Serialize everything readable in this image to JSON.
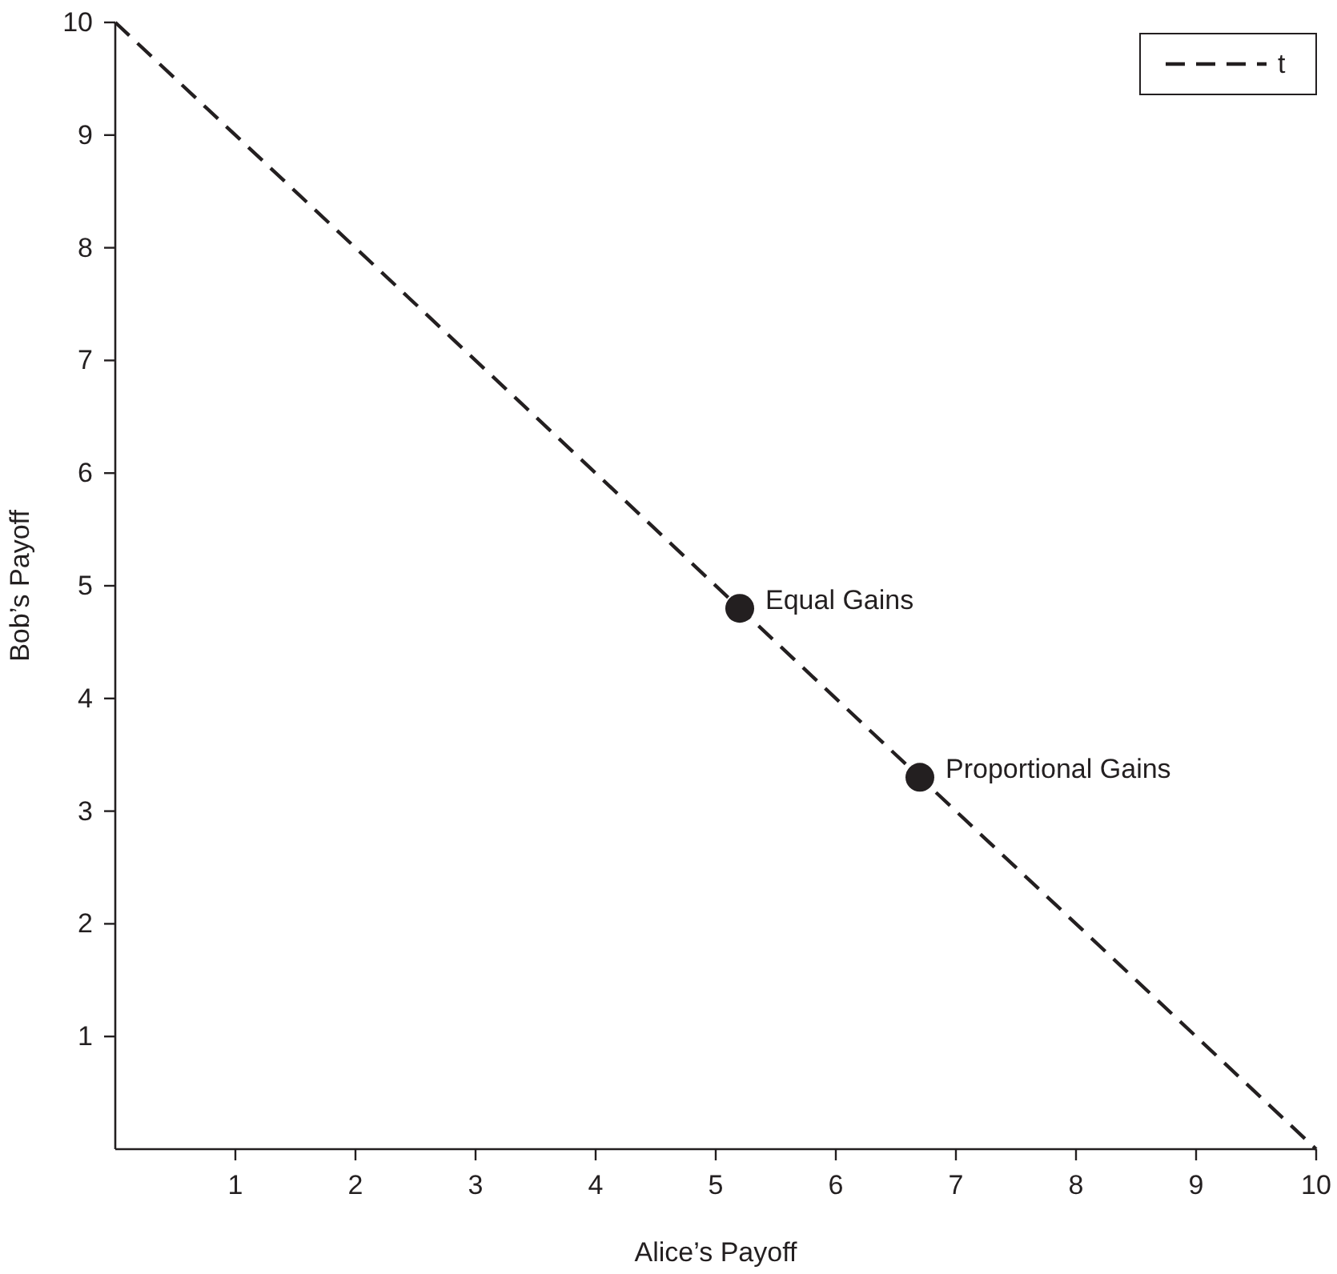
{
  "chart_data": {
    "type": "line",
    "xlabel": "Alice’s Payoff",
    "ylabel": "Bob’s Payoff",
    "xlim": [
      0,
      10
    ],
    "ylim": [
      0,
      10
    ],
    "xticks": [
      1,
      2,
      3,
      4,
      5,
      6,
      7,
      8,
      9,
      10
    ],
    "yticks": [
      1,
      2,
      3,
      4,
      5,
      6,
      7,
      8,
      9,
      10
    ],
    "series": [
      {
        "name": "t",
        "color": "#231f20",
        "x": [
          0,
          10
        ],
        "values": [
          10,
          0
        ],
        "line_style": "dashed",
        "marker": "none"
      },
      {
        "type": "scatter",
        "color": "#231f20",
        "x": [
          5.2,
          6.7
        ],
        "values": [
          4.8,
          3.3
        ],
        "marker": "circle"
      }
    ],
    "annotations": [
      {
        "text": "Equal Gains",
        "x": 5.2,
        "y": 4.8
      },
      {
        "text": "Proportional Gains",
        "x": 6.7,
        "y": 3.3
      }
    ],
    "legend": "top right",
    "grid": false
  }
}
